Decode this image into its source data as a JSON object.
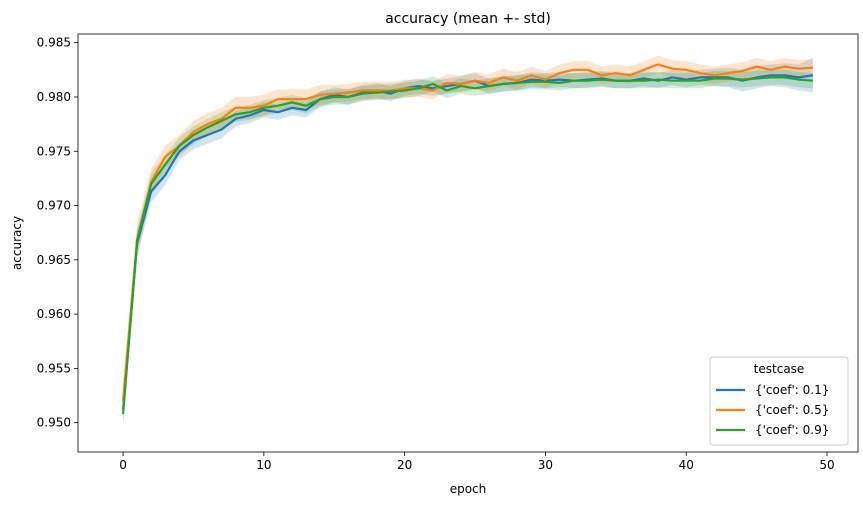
{
  "chart_data": {
    "type": "line",
    "title": "accuracy (mean +- std)",
    "xlabel": "epoch",
    "ylabel": "accuracy",
    "xlim": [
      -3.2,
      52.2
    ],
    "ylim": [
      0.9473,
      0.9858
    ],
    "xticks": [
      0,
      10,
      20,
      30,
      40,
      50
    ],
    "yticks": [
      0.95,
      0.955,
      0.96,
      0.965,
      0.97,
      0.975,
      0.98,
      0.985
    ],
    "grid": false,
    "legend": {
      "title": "testcase",
      "placement": "lower-right"
    },
    "x": [
      0,
      1,
      2,
      3,
      4,
      5,
      6,
      7,
      8,
      9,
      10,
      11,
      12,
      13,
      14,
      15,
      16,
      17,
      18,
      19,
      20,
      21,
      22,
      23,
      24,
      25,
      26,
      27,
      28,
      29,
      30,
      31,
      32,
      33,
      34,
      35,
      36,
      37,
      38,
      39,
      40,
      41,
      42,
      43,
      44,
      45,
      46,
      47,
      48,
      49
    ],
    "series": [
      {
        "name": "{'coef': 0.1}",
        "color": "#1f77b4",
        "values": [
          0.9512,
          0.9665,
          0.9713,
          0.9728,
          0.975,
          0.976,
          0.9765,
          0.977,
          0.978,
          0.9783,
          0.9788,
          0.9786,
          0.979,
          0.9788,
          0.9798,
          0.9802,
          0.98,
          0.9804,
          0.9806,
          0.9803,
          0.9808,
          0.981,
          0.9808,
          0.981,
          0.9812,
          0.9815,
          0.981,
          0.9812,
          0.9813,
          0.9816,
          0.9815,
          0.9816,
          0.9815,
          0.9816,
          0.9817,
          0.9815,
          0.9815,
          0.9817,
          0.9815,
          0.9818,
          0.9816,
          0.9818,
          0.9818,
          0.9818,
          0.9815,
          0.9818,
          0.982,
          0.982,
          0.9818,
          0.982
        ],
        "std": [
          0.0012,
          0.0012,
          0.001,
          0.0009,
          0.0008,
          0.0008,
          0.0008,
          0.0008,
          0.0007,
          0.0007,
          0.0007,
          0.0007,
          0.0007,
          0.0007,
          0.0007,
          0.0007,
          0.0007,
          0.0007,
          0.0007,
          0.0007,
          0.0007,
          0.0007,
          0.0007,
          0.0007,
          0.0007,
          0.0007,
          0.0007,
          0.0007,
          0.0007,
          0.0007,
          0.0007,
          0.0007,
          0.0007,
          0.0007,
          0.0007,
          0.0007,
          0.0007,
          0.0007,
          0.0007,
          0.0007,
          0.0007,
          0.0007,
          0.0008,
          0.0009,
          0.001,
          0.001,
          0.001,
          0.0011,
          0.0012,
          0.0016
        ]
      },
      {
        "name": "{'coef': 0.5}",
        "color": "#ff7f0e",
        "values": [
          0.952,
          0.9668,
          0.9722,
          0.9745,
          0.9755,
          0.9768,
          0.9775,
          0.978,
          0.979,
          0.979,
          0.9792,
          0.9798,
          0.9798,
          0.9798,
          0.9802,
          0.9803,
          0.9804,
          0.9806,
          0.9806,
          0.9806,
          0.9808,
          0.9808,
          0.9806,
          0.9813,
          0.9812,
          0.9815,
          0.9813,
          0.9818,
          0.9815,
          0.982,
          0.9816,
          0.9822,
          0.9825,
          0.9825,
          0.982,
          0.9822,
          0.982,
          0.9825,
          0.983,
          0.9826,
          0.9825,
          0.9822,
          0.982,
          0.9822,
          0.9824,
          0.9828,
          0.9825,
          0.9828,
          0.9826,
          0.9827
        ],
        "std": [
          0.002,
          0.0016,
          0.0012,
          0.001,
          0.001,
          0.001,
          0.001,
          0.001,
          0.001,
          0.001,
          0.001,
          0.0009,
          0.0009,
          0.0009,
          0.0009,
          0.0008,
          0.0008,
          0.0008,
          0.0008,
          0.0008,
          0.0008,
          0.0008,
          0.0008,
          0.0008,
          0.0008,
          0.0008,
          0.0008,
          0.0008,
          0.0008,
          0.0008,
          0.0008,
          0.0008,
          0.0008,
          0.0008,
          0.0008,
          0.0008,
          0.0008,
          0.0008,
          0.0008,
          0.0008,
          0.0008,
          0.0008,
          0.0008,
          0.0008,
          0.0008,
          0.0008,
          0.0008,
          0.0008,
          0.0008,
          0.0008
        ]
      },
      {
        "name": "{'coef': 0.9}",
        "color": "#2ca02c",
        "values": [
          0.9508,
          0.9668,
          0.972,
          0.9738,
          0.9755,
          0.9765,
          0.9772,
          0.9778,
          0.9784,
          0.9786,
          0.979,
          0.9792,
          0.9795,
          0.9792,
          0.9798,
          0.98,
          0.98,
          0.9803,
          0.9804,
          0.9805,
          0.9806,
          0.9808,
          0.9812,
          0.9806,
          0.981,
          0.9808,
          0.981,
          0.9812,
          0.9813,
          0.9814,
          0.9814,
          0.9813,
          0.9815,
          0.9815,
          0.9816,
          0.9815,
          0.9815,
          0.9815,
          0.9816,
          0.9815,
          0.9815,
          0.9815,
          0.9817,
          0.9817,
          0.9816,
          0.9817,
          0.9818,
          0.9818,
          0.9816,
          0.9815
        ],
        "std": [
          0.001,
          0.001,
          0.001,
          0.0009,
          0.0008,
          0.0008,
          0.0008,
          0.0008,
          0.0007,
          0.0007,
          0.0007,
          0.0007,
          0.0007,
          0.0007,
          0.0007,
          0.0007,
          0.0007,
          0.0007,
          0.0007,
          0.0007,
          0.0007,
          0.0007,
          0.0007,
          0.0007,
          0.0007,
          0.0007,
          0.0007,
          0.0007,
          0.0007,
          0.0007,
          0.0007,
          0.0007,
          0.0007,
          0.0007,
          0.0007,
          0.0007,
          0.0007,
          0.0007,
          0.0007,
          0.0007,
          0.0007,
          0.0007,
          0.0007,
          0.0007,
          0.0007,
          0.0007,
          0.0007,
          0.0007,
          0.0007,
          0.0007
        ]
      }
    ]
  }
}
